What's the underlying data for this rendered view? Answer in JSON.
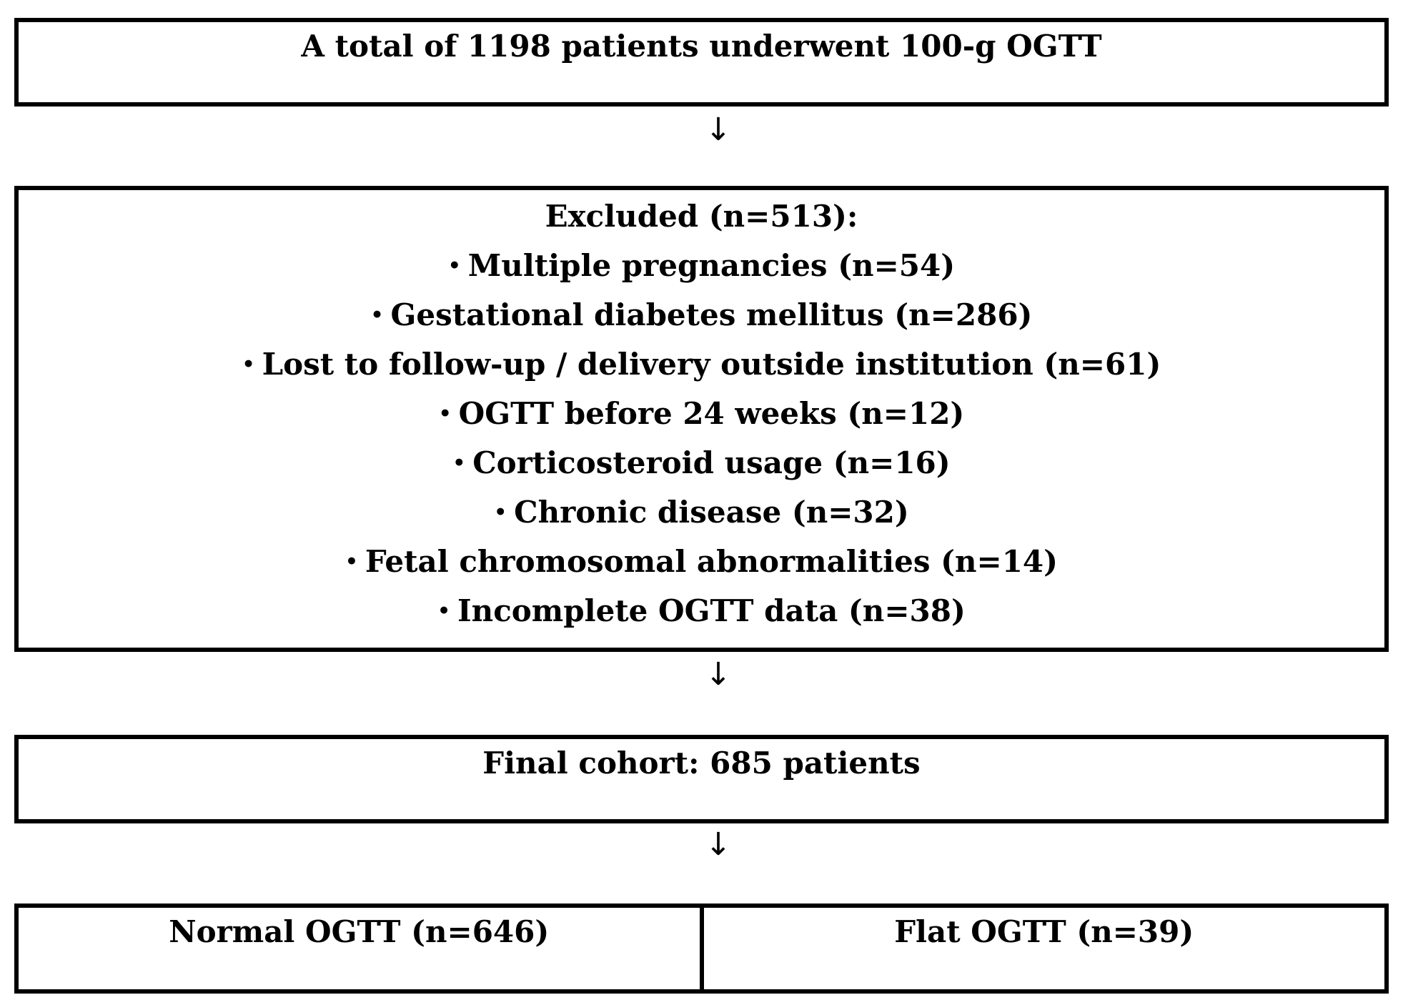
{
  "flowchart": {
    "total_box": {
      "text": "A total of 1198 patients underwent 100-g OGTT"
    },
    "arrow_glyph": "↓",
    "excluded_box": {
      "title": "Excluded (n=513):",
      "bullet": "•",
      "items": [
        "Multiple pregnancies (n=54)",
        "Gestational diabetes mellitus (n=286)",
        "Lost to follow-up / delivery outside institution (n=61)",
        "OGTT before 24 weeks (n=12)",
        "Corticosteroid usage (n=16)",
        "Chronic disease (n=32)",
        "Fetal chromosomal abnormalities (n=14)",
        "Incomplete OGTT data (n=38)"
      ]
    },
    "final_box": {
      "text": "Final cohort: 685 patients"
    },
    "split_box": {
      "left": "Normal OGTT (n=646)",
      "right": "Flat OGTT (n=39)"
    },
    "colors": {
      "border": "#000000",
      "text": "#000000",
      "background": "#ffffff"
    }
  }
}
